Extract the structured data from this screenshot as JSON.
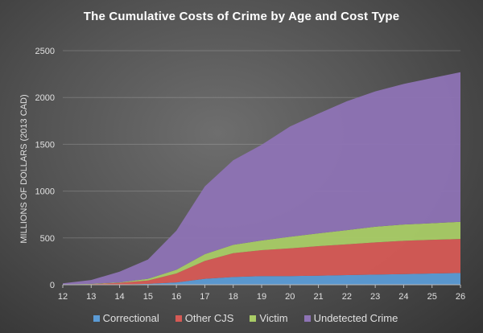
{
  "chart_data": {
    "type": "area",
    "stacked": true,
    "title": "The Cumulative Costs of Crime by Age and Cost Type",
    "xlabel": "",
    "ylabel": "MILLIONS OF DOLLARS  (2013 CAD)",
    "x": [
      12,
      13,
      14,
      15,
      16,
      17,
      18,
      19,
      20,
      21,
      22,
      23,
      24,
      25,
      26
    ],
    "ylim": [
      0,
      2500
    ],
    "yticks": [
      0,
      500,
      1000,
      1500,
      2000,
      2500
    ],
    "grid": true,
    "legend": "bottom",
    "series": [
      {
        "name": "Correctional",
        "color": "#5b9bd5",
        "values": [
          1,
          2,
          2,
          10,
          25,
          63,
          83,
          92,
          92,
          97,
          103,
          108,
          114,
          120,
          126
        ]
      },
      {
        "name": "Other CJS",
        "color": "#d65a55",
        "values": [
          1,
          4,
          18,
          35,
          95,
          192,
          254,
          277,
          297,
          315,
          329,
          344,
          355,
          360,
          363
        ]
      },
      {
        "name": "Victim",
        "color": "#a9cc66",
        "values": [
          1,
          4,
          5,
          18,
          40,
          71,
          89,
          103,
          123,
          137,
          151,
          168,
          174,
          177,
          183
        ]
      },
      {
        "name": "Undetected Crime",
        "color": "#8e73b5",
        "values": [
          12,
          40,
          115,
          207,
          418,
          724,
          904,
          1023,
          1178,
          1279,
          1377,
          1445,
          1502,
          1551,
          1598
        ]
      }
    ]
  }
}
